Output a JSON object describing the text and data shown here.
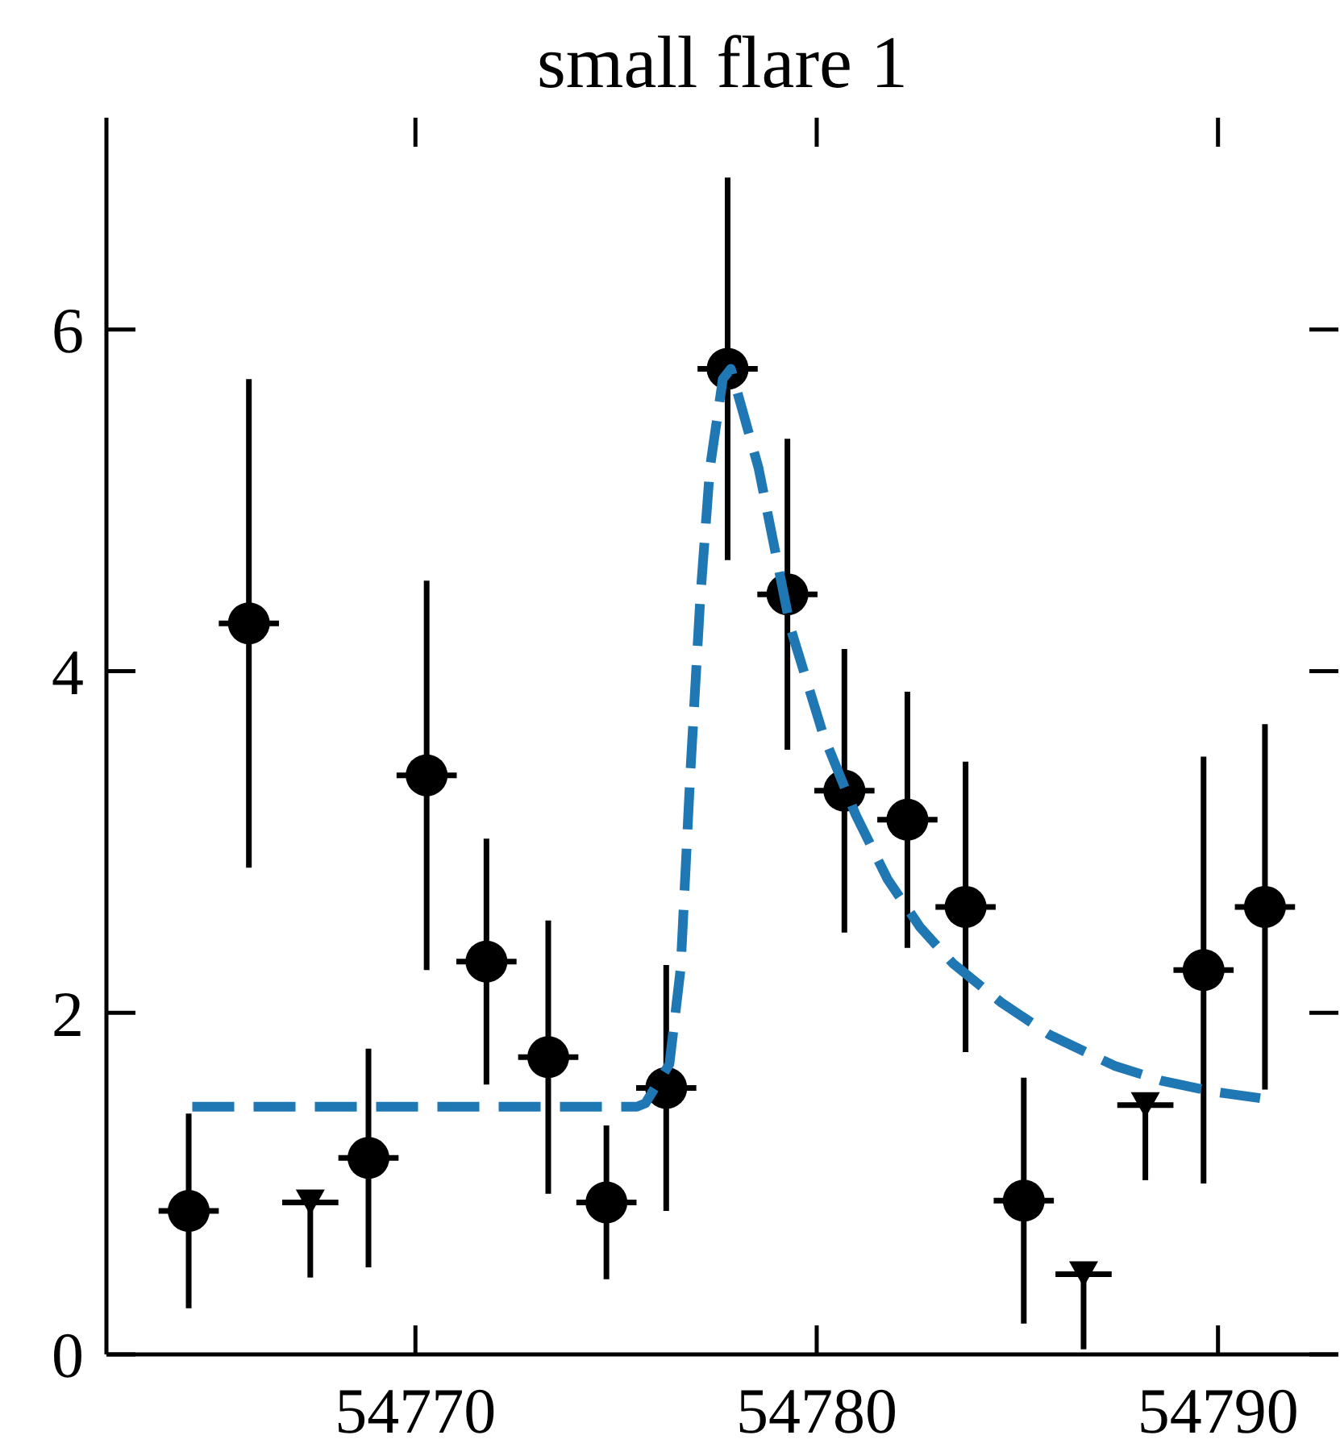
{
  "chart_data": {
    "type": "scatter",
    "title": "small flare 1",
    "xlim": [
      54762.3,
      54793
    ],
    "xticks": [
      54770,
      54780,
      54790
    ],
    "ylim": [
      0,
      7.24
    ],
    "yticks": [
      0,
      2,
      4,
      6
    ],
    "grid": false,
    "legend": false,
    "series": [
      {
        "type": "scatter",
        "marker": "circle",
        "color": "#000000",
        "x": [
          54764.35,
          54765.85,
          54768.83,
          54770.28,
          54771.77,
          54773.31,
          54774.76,
          54776.25,
          54777.78,
          54779.27,
          54780.69,
          54782.26,
          54783.71,
          54785.16,
          54789.64,
          54791.17
        ],
        "values": [
          0.84,
          4.28,
          1.15,
          3.39,
          2.3,
          1.74,
          0.89,
          1.56,
          5.77,
          4.45,
          3.3,
          3.13,
          2.62,
          0.9,
          2.25,
          2.62
        ],
        "errors": [
          0.57,
          1.43,
          0.64,
          1.14,
          0.72,
          0.8,
          0.45,
          0.72,
          1.12,
          0.91,
          0.83,
          0.75,
          0.85,
          0.72,
          1.25,
          1.07
        ],
        "xerrors": [
          0.75,
          0.75,
          0.75,
          0.75,
          0.75,
          0.75,
          0.75,
          0.75,
          0.75,
          0.75,
          0.75,
          0.75,
          0.75,
          0.75,
          0.75,
          0.75
        ]
      },
      {
        "type": "scatter",
        "marker": "triangle",
        "color": "#000000",
        "x": [
          54767.38,
          54786.65,
          54788.19
        ],
        "values": [
          0.89,
          0.47,
          1.46
        ],
        "errors": [
          [
            0.45,
            0.89
          ],
          [
            0.03,
            0.47
          ],
          [
            1.02,
            1.46
          ]
        ],
        "xerrors": [
          0.7,
          0.7,
          0.7
        ]
      },
      {
        "type": "line",
        "line_style": "dashed",
        "color": "#1f77b4",
        "x": [
          54764.44,
          54775.52,
          54775.73,
          54776.33,
          54776.61,
          54776.85,
          54777.1,
          54777.34,
          54777.66,
          54777.86,
          54778.55,
          54779.35,
          54780.16,
          54780.97,
          54781.77,
          54782.58,
          54783.39,
          54784.6,
          54785.81,
          54787.42,
          54788.63,
          54789.84,
          54791.05
        ],
        "values": [
          1.45,
          1.45,
          1.47,
          1.7,
          2.26,
          3.4,
          4.43,
          5.19,
          5.71,
          5.77,
          5.19,
          4.25,
          3.63,
          3.16,
          2.78,
          2.5,
          2.29,
          2.06,
          1.87,
          1.69,
          1.6,
          1.54,
          1.5
        ]
      }
    ]
  }
}
